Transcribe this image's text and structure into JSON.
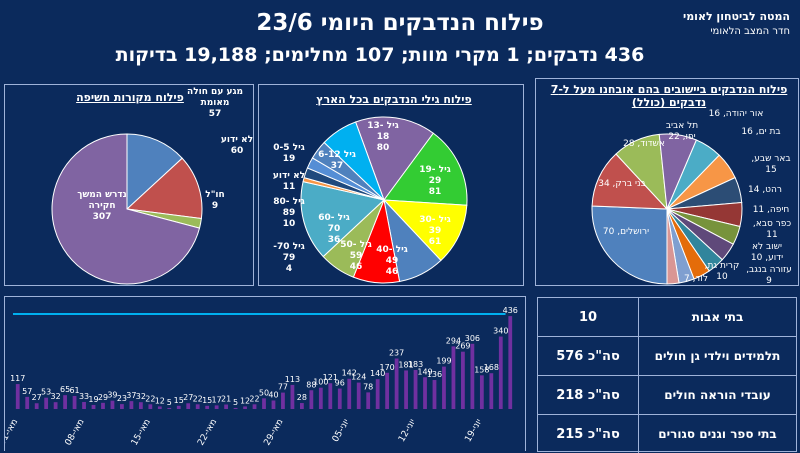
{
  "header": {
    "title": "פילוח הנדבקים היומי 23/6",
    "subtitle": "436 נדבקים; 1 מקרי מוות; 107 מחלימים; 19,188 בדיקות",
    "org_line1": "המטה לביטחון לאומי",
    "org_line2": "חדר המצב הלאומי"
  },
  "table": {
    "rows": [
      {
        "label": "בתי אבות",
        "value": "10"
      },
      {
        "label": "תלמידים וילדי גן חולים",
        "value": "סה\"כ 576"
      },
      {
        "label": "עובדי הוראה חולים",
        "value": "סה\"כ 218"
      },
      {
        "label": "בתי ספר וגנים סגורים",
        "value": "סה\"כ 215"
      }
    ]
  },
  "chart_data": [
    {
      "type": "pie",
      "title": "פילוח מקורות חשיפה",
      "slices": [
        {
          "name": "מגע עם חולה מאומת",
          "value": 57,
          "color": "#4f81bd"
        },
        {
          "name": "לא ידוע",
          "value": 60,
          "color": "#c0504d"
        },
        {
          "name": "חו\"ל",
          "value": 9,
          "color": "#9bbb59"
        },
        {
          "name": "נדרש המשך חקירה",
          "value": 307,
          "color": "#8064a2"
        }
      ]
    },
    {
      "type": "pie",
      "title": "פילוח גילי הנדבקים בכל הארץ",
      "slices": [
        {
          "name": "גיל 13-18",
          "value": 80,
          "color": "#8064a2"
        },
        {
          "name": "גיל 19-29",
          "value": 81,
          "color": "#33cc33"
        },
        {
          "name": "גיל 30-39",
          "value": 61,
          "color": "#ffff00"
        },
        {
          "name": "גיל 40-49",
          "value": 46,
          "color": "#4f81bd"
        },
        {
          "name": "גיל 50-59",
          "value": 46,
          "color": "#ff0000"
        },
        {
          "name": "גיל 60-70",
          "value": 36,
          "color": "#9bbb59"
        },
        {
          "name": "גיל 70-",
          "value": 79,
          "color": "#4bacc6"
        },
        {
          "name": "",
          "value": 4,
          "color": "#f79646"
        },
        {
          "name": "גיל 80-89",
          "value": 10,
          "color": "#1f497d"
        },
        {
          "name": "לא ידוע",
          "value": 11,
          "color": "#558ed5"
        },
        {
          "name": "גיל 0-5",
          "value": 19,
          "color": "#4f81bd"
        },
        {
          "name": "גיל 6-12",
          "value": 37,
          "color": "#00b0f0"
        }
      ],
      "labels": [
        {
          "text": "גיל 13-18",
          "value": "80"
        },
        {
          "text": "גיל 19-29",
          "value": "81"
        },
        {
          "text": "גיל 30-39",
          "value": "61"
        },
        {
          "text": "גיל 40-49",
          "value": "46"
        },
        {
          "text": "גיל 50-59",
          "value": "46"
        },
        {
          "text": "גיל 60-70",
          "value": "36"
        },
        {
          "text": "גיל 70-",
          "value": "79"
        },
        {
          "text": "",
          "value": "4"
        },
        {
          "text": "גיל 80-89",
          "value": "10"
        },
        {
          "text": "לא ידוע",
          "value": "11"
        },
        {
          "text": "גיל 0-5",
          "value": "19"
        },
        {
          "text": "גיל 6-12",
          "value": "37"
        }
      ]
    },
    {
      "type": "pie",
      "title": "פילוח הנדבקים ביישובים בהם אובחנו מעל ל-7 נדבקים (כולל)",
      "slices": [
        {
          "name": "ירושלים",
          "value": 70,
          "color": "#4f81bd"
        },
        {
          "name": "בני ברק",
          "value": 34,
          "color": "#c0504d"
        },
        {
          "name": "אשדוד",
          "value": 28,
          "color": "#9bbb59"
        },
        {
          "name": "תל אביב יפו",
          "value": 22,
          "color": "#8064a2"
        },
        {
          "name": "אור יהודה",
          "value": 16,
          "color": "#4bacc6"
        },
        {
          "name": "בת ים",
          "value": 16,
          "color": "#f79646"
        },
        {
          "name": "באר שבע",
          "value": 15,
          "color": "#2c4d75"
        },
        {
          "name": "רהט",
          "value": 14,
          "color": "#953735"
        },
        {
          "name": "חיפה",
          "value": 11,
          "color": "#77933c"
        },
        {
          "name": "כפר סבא",
          "value": 11,
          "color": "#5f497a"
        },
        {
          "name": "ישוב לא ידוע",
          "value": 10,
          "color": "#31859c"
        },
        {
          "name": "קרית גת",
          "value": 10,
          "color": "#e46c0a"
        },
        {
          "name": "עזורה בנגב",
          "value": 9,
          "color": "#7f9fd0"
        },
        {
          "name": "לוד",
          "value": 7,
          "color": "#d99694"
        }
      ],
      "labels": [
        {
          "text": "ירושלים, 70"
        },
        {
          "text": "בני ברק, 34"
        },
        {
          "text": "אשדוד, 28"
        },
        {
          "text": "תל אביב יפו, 22"
        },
        {
          "text": "אור יהודה, 16"
        },
        {
          "text": "בת ים, 16"
        },
        {
          "text": "באר שבע, 15"
        },
        {
          "text": "רהט, 14"
        },
        {
          "text": "חיפה, 11"
        },
        {
          "text": "כפר סבא, 11"
        },
        {
          "text": "ישוב לא ידוע, 10"
        },
        {
          "text": "קרית גת, 10"
        },
        {
          "text": "עזורה בנגב, 9"
        },
        {
          "text": "לוד, 7"
        }
      ]
    },
    {
      "type": "bar",
      "values": [
        117,
        57,
        27,
        53,
        32,
        65,
        61,
        33,
        19,
        29,
        39,
        23,
        37,
        32,
        22,
        12,
        5,
        15,
        27,
        22,
        15,
        17,
        21,
        5,
        12,
        22,
        50,
        40,
        77,
        113,
        28,
        88,
        100,
        121,
        96,
        142,
        124,
        78,
        140,
        170,
        237,
        181,
        183,
        149,
        136,
        199,
        294,
        269,
        306,
        158,
        168,
        340,
        436
      ],
      "tick_labels": [
        "01-מאי",
        "08-מאי",
        "15-מאי",
        "22-מאי",
        "29-מאי",
        "05-יוני",
        "12-יוני",
        "19-יוני"
      ],
      "tick_positions": [
        0,
        7,
        14,
        21,
        28,
        35,
        42,
        49
      ],
      "ylim": [
        0,
        460
      ],
      "bar_color": "#7030a0",
      "line_color": "#00b0f0"
    }
  ]
}
